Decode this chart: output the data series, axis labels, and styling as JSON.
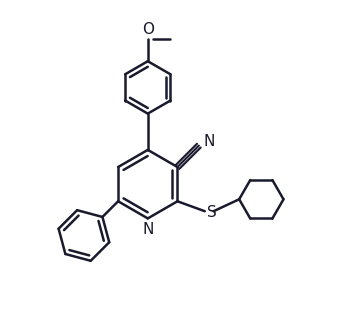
{
  "background_color": "#ffffff",
  "line_color": "#1a1a2e",
  "line_width": 1.8,
  "font_size": 10,
  "figsize": [
    3.52,
    3.28
  ],
  "dpi": 100,
  "xlim": [
    -2.5,
    5.5
  ],
  "ylim": [
    -3.5,
    4.5
  ]
}
